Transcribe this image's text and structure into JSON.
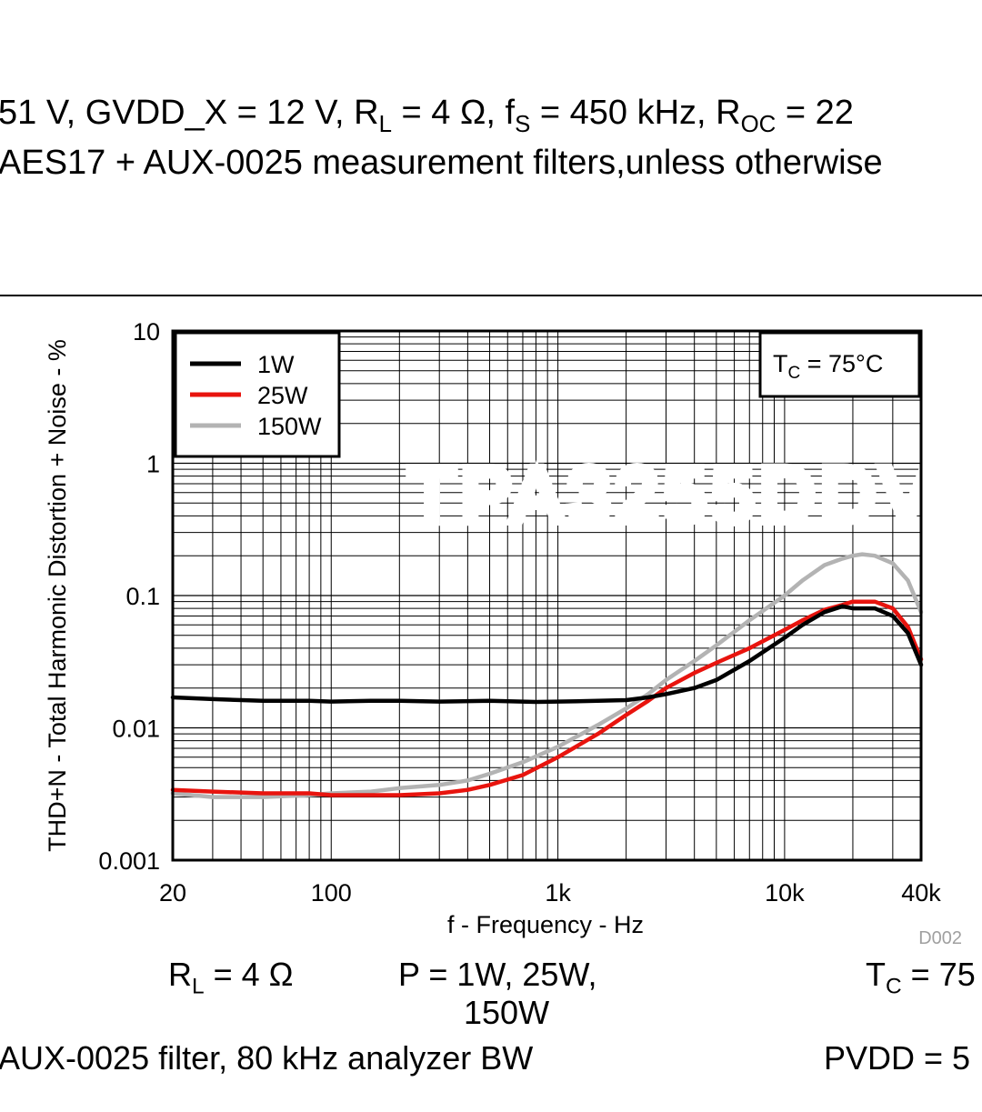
{
  "header": {
    "line1": {
      "a": "51 V, GVDD_X = 12 V, R",
      "a_sub": "L",
      "b": " = 4 Ω, f",
      "b_sub": "S",
      "c": " = 450 kHz, R",
      "c_sub": "OC",
      "d": " = 22"
    },
    "line2": "AES17 + AUX-0025 measurement filters,unless otherwise"
  },
  "chart_data": {
    "type": "line",
    "xscale": "log",
    "yscale": "log",
    "xlim": [
      20,
      40000
    ],
    "ylim": [
      0.001,
      10
    ],
    "xlabel": "f - Frequency - Hz",
    "ylabel": "THD+N - Total Harmonic Distortion + Noise - %",
    "x_tick_labels": [
      "20",
      "100",
      "1k",
      "10k",
      "40k"
    ],
    "x_tick_values": [
      20,
      100,
      1000,
      10000,
      40000
    ],
    "y_tick_labels": [
      "10",
      "1",
      "0.1",
      "0.01",
      "0.001"
    ],
    "y_tick_values": [
      10,
      1,
      0.1,
      0.01,
      0.001
    ],
    "grid": true,
    "legend_position": "top-left",
    "annotation": {
      "pre": "T",
      "sub": "C",
      "post": " = 75°C"
    },
    "watermark": "TPA3255DDV",
    "figure_id": "D002",
    "series": [
      {
        "name": "1W",
        "color": "#000000",
        "x": [
          20,
          30,
          50,
          80,
          100,
          150,
          200,
          300,
          500,
          800,
          1000,
          1500,
          2000,
          2500,
          3000,
          4000,
          5000,
          7000,
          10000,
          12000,
          15000,
          18000,
          20000,
          25000,
          30000,
          35000,
          40000
        ],
        "y": [
          0.017,
          0.0165,
          0.016,
          0.016,
          0.0158,
          0.016,
          0.016,
          0.0158,
          0.016,
          0.0157,
          0.0158,
          0.016,
          0.0162,
          0.017,
          0.018,
          0.02,
          0.023,
          0.032,
          0.048,
          0.06,
          0.075,
          0.083,
          0.08,
          0.08,
          0.07,
          0.052,
          0.03
        ]
      },
      {
        "name": "25W",
        "color": "#e8140e",
        "x": [
          20,
          30,
          50,
          80,
          100,
          150,
          200,
          300,
          400,
          500,
          700,
          1000,
          1500,
          2000,
          2500,
          3000,
          4000,
          5000,
          7000,
          10000,
          12000,
          15000,
          18000,
          20000,
          25000,
          30000,
          35000,
          40000
        ],
        "y": [
          0.0034,
          0.0033,
          0.0032,
          0.0032,
          0.0031,
          0.0031,
          0.0031,
          0.0032,
          0.0034,
          0.0037,
          0.0044,
          0.006,
          0.009,
          0.0125,
          0.016,
          0.02,
          0.026,
          0.031,
          0.04,
          0.055,
          0.065,
          0.078,
          0.085,
          0.09,
          0.09,
          0.08,
          0.058,
          0.033
        ]
      },
      {
        "name": "150W",
        "color": "#b3b3b3",
        "x": [
          20,
          30,
          50,
          80,
          100,
          150,
          200,
          300,
          400,
          500,
          700,
          1000,
          1500,
          2000,
          2500,
          3000,
          4000,
          5000,
          7000,
          10000,
          12000,
          15000,
          18000,
          20000,
          22000,
          25000,
          30000,
          35000,
          40000
        ],
        "y": [
          0.0032,
          0.003,
          0.003,
          0.0031,
          0.0032,
          0.0033,
          0.0035,
          0.0037,
          0.004,
          0.0045,
          0.0055,
          0.0072,
          0.0105,
          0.014,
          0.018,
          0.023,
          0.032,
          0.042,
          0.065,
          0.1,
          0.13,
          0.17,
          0.19,
          0.2,
          0.205,
          0.2,
          0.175,
          0.13,
          0.075
        ]
      }
    ]
  },
  "captions": {
    "rl": {
      "pre": "R",
      "sub": "L",
      "post": " = 4 Ω"
    },
    "p_line1": "P = 1W, 25W,",
    "p_line2": "150W",
    "tc": {
      "pre": "T",
      "sub": "C",
      "post": " = 75"
    },
    "filter": "AUX-0025 filter, 80 kHz analyzer BW",
    "pvdd": "PVDD = 5"
  }
}
